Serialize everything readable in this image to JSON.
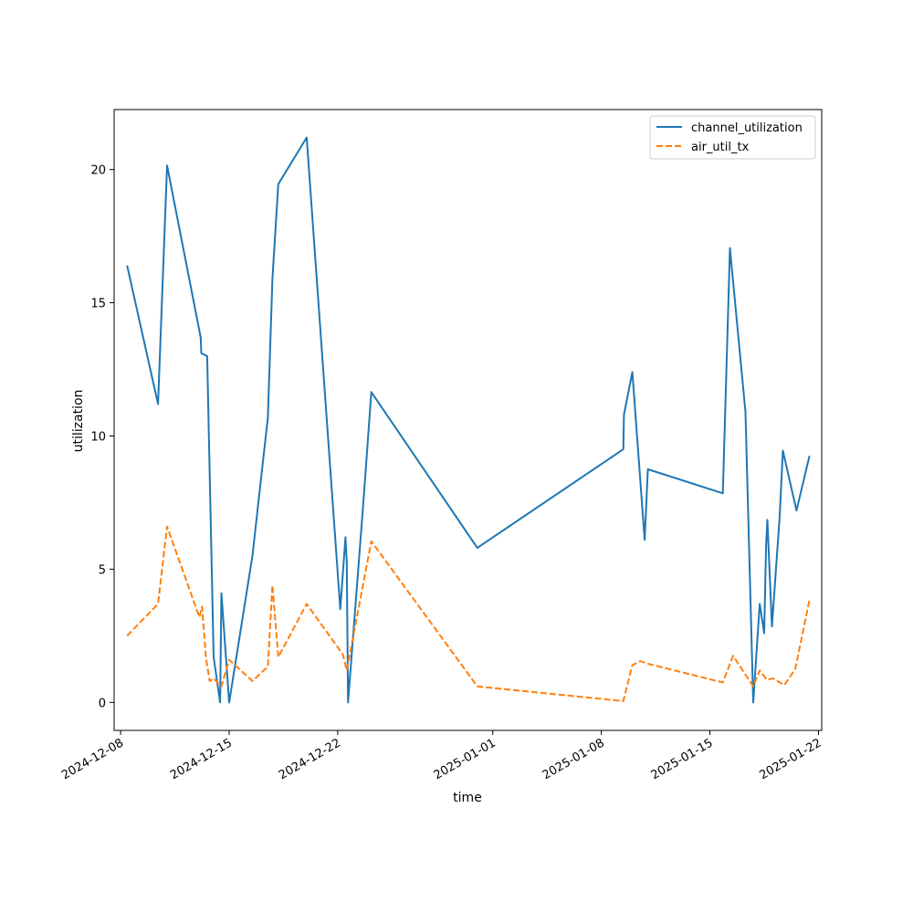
{
  "chart_data": {
    "type": "line",
    "xlabel": "time",
    "ylabel": "utilization",
    "x_ticks": [
      "2024-12-08",
      "2024-12-15",
      "2024-12-22",
      "2025-01-01",
      "2025-01-08",
      "2025-01-15",
      "2025-01-22"
    ],
    "y_ticks": [
      0,
      5,
      10,
      15,
      20
    ],
    "xlim": [
      "2024-12-07T14:00",
      "2025-01-22T05:00"
    ],
    "ylim": [
      -1.05,
      22.25
    ],
    "grid": false,
    "legend_position": "top-right",
    "series": [
      {
        "name": "channel_utilization",
        "color": "#1f77b4",
        "style": "solid",
        "points": [
          [
            "2024-12-08T10:00",
            16.4
          ],
          [
            "2024-12-10T10:00",
            11.2
          ],
          [
            "2024-12-11T00:00",
            20.15
          ],
          [
            "2024-12-13T04:00",
            13.7
          ],
          [
            "2024-12-13T05:00",
            13.1
          ],
          [
            "2024-12-13T14:00",
            13.0
          ],
          [
            "2024-12-14T00:00",
            1.7
          ],
          [
            "2024-12-14T10:00",
            0.0
          ],
          [
            "2024-12-14T12:00",
            4.1
          ],
          [
            "2024-12-15T00:00",
            0.0
          ],
          [
            "2024-12-16T12:00",
            5.5
          ],
          [
            "2024-12-17T12:00",
            10.7
          ],
          [
            "2024-12-17T19:00",
            15.9
          ],
          [
            "2024-12-18T04:00",
            19.45
          ],
          [
            "2024-12-20T00:00",
            21.2
          ],
          [
            "2024-12-22T04:00",
            3.5
          ],
          [
            "2024-12-22T12:00",
            6.2
          ],
          [
            "2024-12-22T14:00",
            5.3
          ],
          [
            "2024-12-22T16:00",
            0.0
          ],
          [
            "2024-12-23T16:00",
            7.6
          ],
          [
            "2024-12-24T04:00",
            11.65
          ],
          [
            "2024-12-31T00:00",
            5.8
          ],
          [
            "2025-01-09T10:00",
            9.5
          ],
          [
            "2025-01-09T11:00",
            10.8
          ],
          [
            "2025-01-10T00:00",
            12.4
          ],
          [
            "2025-01-10T19:00",
            6.1
          ],
          [
            "2025-01-11T00:00",
            8.75
          ],
          [
            "2025-01-15T20:00",
            7.85
          ],
          [
            "2025-01-16T07:00",
            17.05
          ],
          [
            "2025-01-17T07:00",
            10.9
          ],
          [
            "2025-01-17T19:00",
            0.0
          ],
          [
            "2025-01-18T05:00",
            3.7
          ],
          [
            "2025-01-18T12:00",
            2.6
          ],
          [
            "2025-01-18T15:00",
            5.9
          ],
          [
            "2025-01-18T17:00",
            6.85
          ],
          [
            "2025-01-19T00:00",
            2.85
          ],
          [
            "2025-01-19T12:00",
            7.0
          ],
          [
            "2025-01-19T17:00",
            9.45
          ],
          [
            "2025-01-20T14:00",
            7.2
          ],
          [
            "2025-01-21T10:00",
            9.25
          ]
        ]
      },
      {
        "name": "air_util_tx",
        "color": "#ff7f0e",
        "style": "dashed",
        "points": [
          [
            "2024-12-08T10:00",
            2.5
          ],
          [
            "2024-12-10T10:00",
            3.7
          ],
          [
            "2024-12-11T00:00",
            6.6
          ],
          [
            "2024-12-13T02:00",
            3.2
          ],
          [
            "2024-12-13T06:00",
            3.6
          ],
          [
            "2024-12-13T12:00",
            1.7
          ],
          [
            "2024-12-13T18:00",
            0.8
          ],
          [
            "2024-12-14T00:00",
            0.9
          ],
          [
            "2024-12-14T12:00",
            0.6
          ],
          [
            "2024-12-15T00:00",
            1.6
          ],
          [
            "2024-12-16T12:00",
            0.8
          ],
          [
            "2024-12-17T12:00",
            1.35
          ],
          [
            "2024-12-17T19:00",
            4.4
          ],
          [
            "2024-12-18T04:00",
            1.7
          ],
          [
            "2024-12-20T00:00",
            3.7
          ],
          [
            "2024-12-22T08:00",
            1.8
          ],
          [
            "2024-12-22T14:00",
            1.2
          ],
          [
            "2024-12-24T04:00",
            6.05
          ],
          [
            "2024-12-31T00:00",
            0.6
          ],
          [
            "2025-01-09T10:00",
            0.05
          ],
          [
            "2025-01-10T00:00",
            1.4
          ],
          [
            "2025-01-10T12:00",
            1.55
          ],
          [
            "2025-01-11T00:00",
            1.45
          ],
          [
            "2025-01-15T20:00",
            0.75
          ],
          [
            "2025-01-16T12:00",
            1.75
          ],
          [
            "2025-01-17T19:00",
            0.6
          ],
          [
            "2025-01-18T05:00",
            1.2
          ],
          [
            "2025-01-18T16:00",
            0.85
          ],
          [
            "2025-01-19T02:00",
            0.9
          ],
          [
            "2025-01-19T19:00",
            0.65
          ],
          [
            "2025-01-20T12:00",
            1.25
          ],
          [
            "2025-01-21T10:00",
            3.85
          ]
        ]
      }
    ]
  }
}
